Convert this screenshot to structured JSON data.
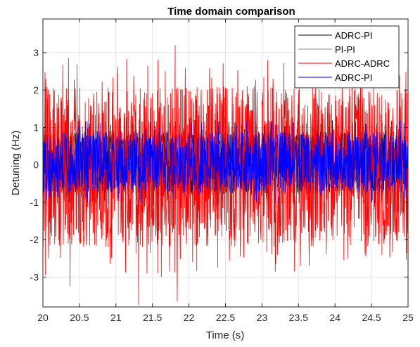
{
  "chart_data": {
    "type": "line",
    "title": "Time domain comparison",
    "xlabel": "Time (s)",
    "ylabel": "Detuning (Hz)",
    "xlim": [
      20,
      25
    ],
    "ylim": [
      -3.8,
      3.9
    ],
    "xticks": [
      20,
      20.5,
      21,
      21.5,
      22,
      22.5,
      23,
      23.5,
      24,
      24.5,
      25
    ],
    "xtick_labels": [
      "20",
      "20.5",
      "21",
      "21.5",
      "22",
      "22.5",
      "23",
      "23.5",
      "24",
      "24.5",
      "25"
    ],
    "yticks": [
      -3,
      -2,
      -1,
      0,
      1,
      2,
      3
    ],
    "ytick_labels": [
      "-3",
      "-2",
      "-1",
      "0",
      "1",
      "2",
      "3"
    ],
    "grid": true,
    "legend_position": "top-right",
    "series": [
      {
        "name": "ADRC-PI",
        "color": "#000000",
        "style": "noise",
        "amplitude_range": [
          -0.8,
          0.9
        ],
        "peaks": []
      },
      {
        "name": "PI-PI",
        "color": "#8c8c8c",
        "style": "noise",
        "amplitude_range": [
          -0.8,
          0.9
        ],
        "peaks": []
      },
      {
        "name": "ADRC-ADRC",
        "color": "#ff0000",
        "style": "noise",
        "amplitude_range": [
          -2.2,
          2.1
        ],
        "peaks": [
          {
            "x": 20.35,
            "y": 2.85
          },
          {
            "x": 20.37,
            "y": -3.25
          },
          {
            "x": 21.31,
            "y": -3.75
          },
          {
            "x": 21.81,
            "y": 3.2
          },
          {
            "x": 21.84,
            "y": -3.65
          },
          {
            "x": 21.62,
            "y": -3.0
          },
          {
            "x": 20.08,
            "y": -2.5
          },
          {
            "x": 21.02,
            "y": 2.35
          },
          {
            "x": 22.05,
            "y": -2.6
          },
          {
            "x": 23.15,
            "y": 2.3
          },
          {
            "x": 24.35,
            "y": 2.25
          }
        ]
      },
      {
        "name": "ADRC-PI",
        "color": "#0000ff",
        "style": "noise",
        "amplitude_range": [
          -0.75,
          0.9
        ],
        "peaks": []
      }
    ]
  }
}
